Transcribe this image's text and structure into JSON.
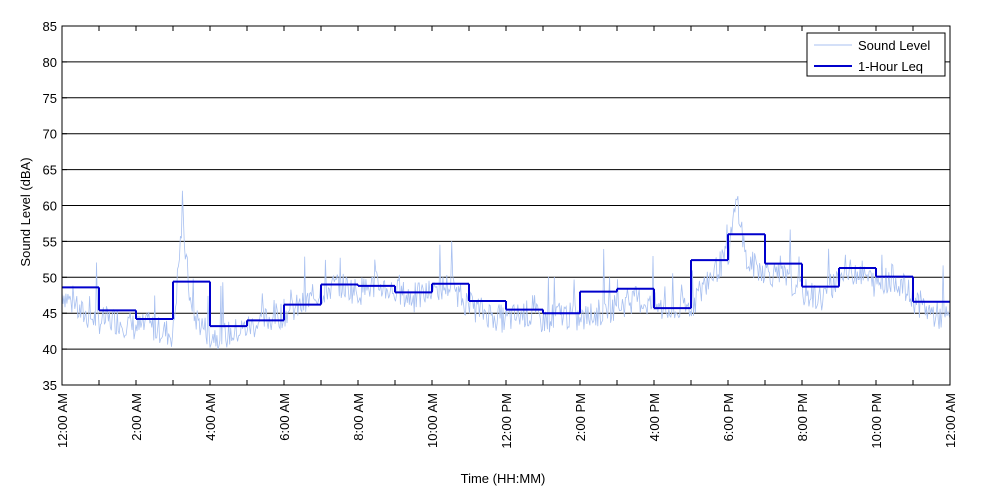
{
  "chart_data": {
    "type": "line",
    "title": "",
    "xlabel": "Time (HH:MM)",
    "ylabel": "Sound Level (dBA)",
    "xlim": [
      0,
      24
    ],
    "ylim": [
      35,
      85
    ],
    "y_ticks": [
      35,
      40,
      45,
      50,
      55,
      60,
      65,
      70,
      75,
      80,
      85
    ],
    "x_ticks": [
      0,
      2,
      4,
      6,
      8,
      10,
      12,
      14,
      16,
      18,
      20,
      22,
      24
    ],
    "x_tick_labels": [
      "12:00 AM",
      "2:00 AM",
      "4:00 AM",
      "6:00 AM",
      "8:00 AM",
      "10:00 AM",
      "12:00 PM",
      "2:00 PM",
      "4:00 PM",
      "6:00 PM",
      "8:00 PM",
      "10:00 PM",
      "12:00 AM"
    ],
    "grid": "horizontal",
    "legend_position": "top-right",
    "series": [
      {
        "name": "Sound Level",
        "color": "#a8c0f0",
        "style": "thin line",
        "x_hours": [
          0.0,
          0.5,
          1.0,
          1.5,
          2.0,
          2.5,
          3.0,
          3.25,
          3.5,
          4.0,
          4.5,
          5.0,
          5.5,
          6.0,
          6.5,
          7.0,
          7.5,
          8.0,
          8.5,
          9.0,
          9.5,
          10.0,
          10.5,
          11.0,
          11.5,
          12.0,
          12.5,
          13.0,
          13.5,
          14.0,
          14.5,
          15.0,
          15.5,
          16.0,
          16.5,
          17.0,
          17.5,
          18.0,
          18.25,
          18.5,
          19.0,
          19.5,
          20.0,
          20.5,
          21.0,
          21.5,
          22.0,
          22.5,
          23.0,
          23.5,
          24.0
        ],
        "values": [
          48,
          45,
          44,
          44,
          43,
          43,
          42,
          58,
          45,
          42,
          42,
          43,
          44,
          45,
          46,
          48,
          49,
          48,
          49,
          48,
          47,
          48,
          49,
          46,
          45,
          44,
          45,
          44,
          45,
          44,
          45,
          46,
          47,
          46,
          45,
          46,
          50,
          53,
          61,
          52,
          51,
          50,
          48,
          47,
          50,
          51,
          49,
          50,
          47,
          45,
          44
        ]
      },
      {
        "name": "1-Hour Leq",
        "color": "#0000cc",
        "style": "step",
        "hour_starts": [
          0,
          1,
          2,
          3,
          4,
          5,
          6,
          7,
          8,
          9,
          10,
          11,
          12,
          13,
          14,
          15,
          16,
          17,
          18,
          19,
          20,
          21,
          22,
          23
        ],
        "values": [
          48.6,
          45.4,
          44.2,
          49.4,
          43.2,
          44.0,
          46.2,
          49.0,
          48.8,
          47.9,
          49.1,
          46.7,
          45.5,
          45.0,
          48.0,
          48.4,
          45.7,
          52.4,
          56.0,
          51.9,
          48.7,
          51.3,
          50.1,
          46.6
        ]
      }
    ]
  }
}
